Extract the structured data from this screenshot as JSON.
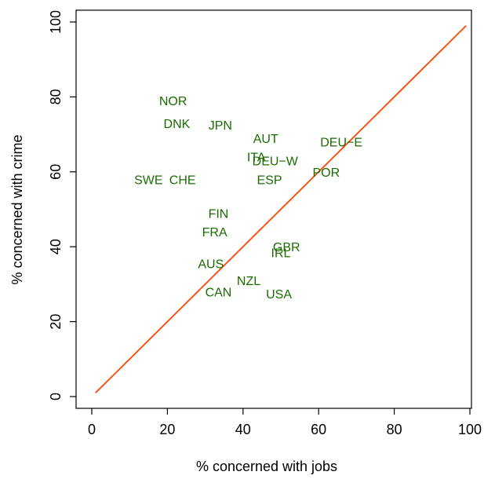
{
  "chart_data": {
    "type": "scatter",
    "xlabel": "% concerned with jobs",
    "ylabel": "% concerned with crime",
    "xlim": [
      0,
      100
    ],
    "ylim": [
      0,
      100
    ],
    "xticks": [
      "0",
      "20",
      "40",
      "60",
      "80",
      "100"
    ],
    "yticks": [
      "0",
      "20",
      "40",
      "60",
      "80",
      "100"
    ],
    "label_color": "#1a6b00",
    "reference_line": {
      "from": [
        1,
        1
      ],
      "to": [
        99,
        99
      ],
      "color": "#ff4500"
    },
    "points": [
      {
        "label": "NOR",
        "x": 21.5,
        "y": 79
      },
      {
        "label": "DNK",
        "x": 22.5,
        "y": 73
      },
      {
        "label": "JPN",
        "x": 34,
        "y": 72.5
      },
      {
        "label": "AUT",
        "x": 46,
        "y": 69
      },
      {
        "label": "DEU−E",
        "x": 66,
        "y": 68
      },
      {
        "label": "ITA",
        "x": 43.5,
        "y": 64
      },
      {
        "label": "DEU−W",
        "x": 48.5,
        "y": 63
      },
      {
        "label": "POR",
        "x": 62,
        "y": 60
      },
      {
        "label": "SWE",
        "x": 15,
        "y": 58
      },
      {
        "label": "CHE",
        "x": 24,
        "y": 58
      },
      {
        "label": "ESP",
        "x": 47,
        "y": 58
      },
      {
        "label": "FIN",
        "x": 33.5,
        "y": 49
      },
      {
        "label": "FRA",
        "x": 32.5,
        "y": 44
      },
      {
        "label": "GBR",
        "x": 51.5,
        "y": 40
      },
      {
        "label": "IRL",
        "x": 50,
        "y": 38.5
      },
      {
        "label": "AUS",
        "x": 31.5,
        "y": 35.5
      },
      {
        "label": "NZL",
        "x": 41.5,
        "y": 31
      },
      {
        "label": "CAN",
        "x": 33.5,
        "y": 28
      },
      {
        "label": "USA",
        "x": 49.5,
        "y": 27.5
      }
    ]
  }
}
